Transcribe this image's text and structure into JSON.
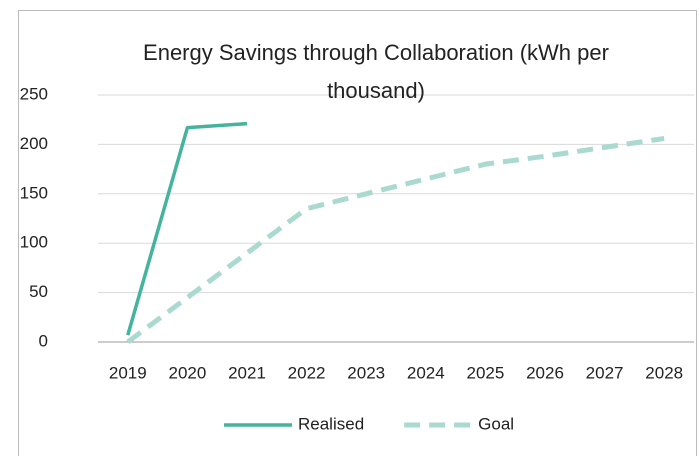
{
  "chart_data": {
    "type": "line",
    "title": "Energy Savings through Collaboration (kWh per thousand)",
    "categories": [
      "2019",
      "2020",
      "2021",
      "2022",
      "2023",
      "2024",
      "2025",
      "2026",
      "2027",
      "2028"
    ],
    "series": [
      {
        "name": "Realised",
        "color": "#45b39d",
        "dash": false,
        "values": [
          7,
          217,
          221,
          null,
          null,
          null,
          null,
          null,
          null,
          null
        ]
      },
      {
        "name": "Goal",
        "color": "#a9d9cf",
        "dash": true,
        "values": [
          0,
          45,
          90,
          135,
          150,
          165,
          180,
          188,
          197,
          206
        ]
      }
    ],
    "ylim": [
      0,
      250
    ],
    "yticks": [
      0,
      50,
      100,
      150,
      200,
      250
    ],
    "grid": true,
    "legend": "bottom"
  }
}
